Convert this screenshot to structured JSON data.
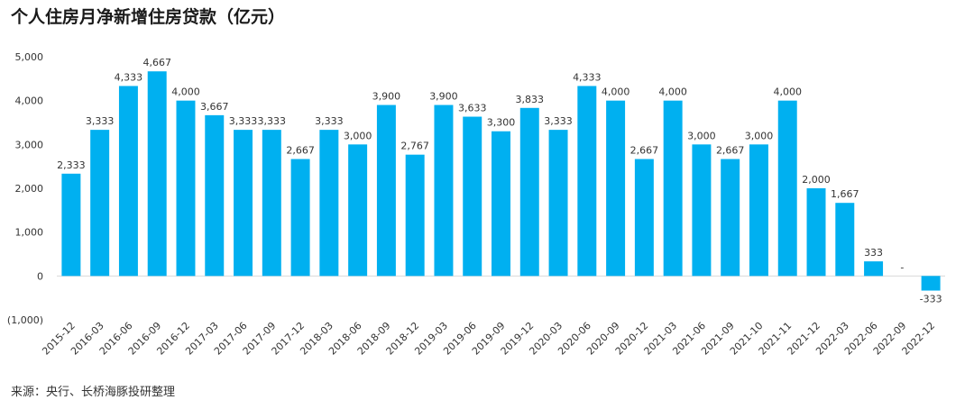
{
  "title": "个人住房月净新增住房贷款（亿元）",
  "source": "来源：央行、长桥海豚投研整理",
  "colors": {
    "bar": "#00b0f0",
    "negative_tick": "#ff0000",
    "axis": "#d9d9d9"
  },
  "chart_data": {
    "type": "bar",
    "title": "个人住房月净新增住房贷款（亿元）",
    "xlabel": "",
    "ylabel": "",
    "ylim": [
      -1000,
      5000
    ],
    "yticks": [
      5000,
      4000,
      3000,
      2000,
      1000,
      0,
      -1000
    ],
    "ytick_labels": [
      "5,000",
      "4,000",
      "3,000",
      "2,000",
      "1,000",
      "0",
      "(1,000)"
    ],
    "grid": false,
    "categories": [
      "2015-12",
      "2016-03",
      "2016-06",
      "2016-09",
      "2016-12",
      "2017-03",
      "2017-06",
      "2017-09",
      "2017-12",
      "2018-03",
      "2018-06",
      "2018-09",
      "2018-12",
      "2019-03",
      "2019-06",
      "2019-09",
      "2019-12",
      "2020-03",
      "2020-06",
      "2020-09",
      "2020-12",
      "2021-03",
      "2021-06",
      "2021-09",
      "2021-10",
      "2021-11",
      "2021-12",
      "2022-03",
      "2022-06",
      "2022-09",
      "2022-12"
    ],
    "values": [
      2333,
      3333,
      4333,
      4667,
      4000,
      3667,
      3333,
      3333,
      2667,
      3333,
      3000,
      3900,
      2767,
      3900,
      3633,
      3300,
      3833,
      3333,
      4333,
      4000,
      2667,
      4000,
      3000,
      2667,
      3000,
      4000,
      2000,
      1667,
      333,
      0,
      -333
    ],
    "data_labels": [
      "2,333",
      "3,333",
      "4,333",
      "4,667",
      "4,000",
      "3,667",
      "3,333",
      "3,333",
      "2,667",
      "3,333",
      "3,000",
      "3,900",
      "2,767",
      "3,900",
      "3,633",
      "3,300",
      "3,833",
      "3,333",
      "4,333",
      "4,000",
      "2,667",
      "4,000",
      "3,000",
      "2,667",
      "3,000",
      "4,000",
      "2,000",
      "1,667",
      "333",
      "-",
      "-333"
    ]
  }
}
